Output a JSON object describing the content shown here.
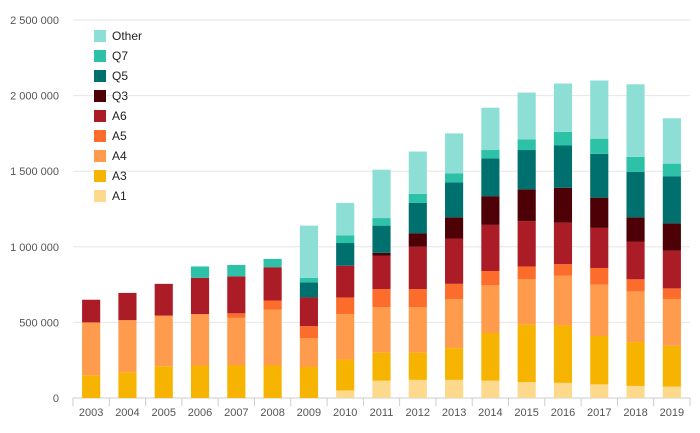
{
  "chart_data": {
    "type": "bar",
    "stacked": true,
    "categories": [
      "2003",
      "2004",
      "2005",
      "2006",
      "2007",
      "2008",
      "2009",
      "2010",
      "2011",
      "2012",
      "2013",
      "2014",
      "2015",
      "2016",
      "2017",
      "2018",
      "2019"
    ],
    "ylim": [
      0,
      2500000
    ],
    "yticks": [
      0,
      500000,
      1000000,
      1500000,
      2000000,
      2500000
    ],
    "ytick_labels": [
      "0",
      "500 000",
      "1 000 000",
      "1 500 000",
      "2 000 000",
      "2 500 000"
    ],
    "grid": true,
    "legend_position": "top-left",
    "series": [
      {
        "name": "A1",
        "color": "#fcd98c",
        "values": [
          0,
          0,
          0,
          0,
          0,
          0,
          0,
          50000,
          115000,
          120000,
          120000,
          115000,
          105000,
          100000,
          90000,
          80000,
          75000
        ]
      },
      {
        "name": "A3",
        "color": "#f6b400",
        "values": [
          150000,
          170000,
          210000,
          215000,
          215000,
          215000,
          205000,
          205000,
          185000,
          180000,
          210000,
          315000,
          380000,
          380000,
          320000,
          290000,
          270000
        ]
      },
      {
        "name": "A4",
        "color": "#fe9b4d",
        "values": [
          350000,
          345000,
          335000,
          340000,
          315000,
          370000,
          190000,
          300000,
          300000,
          300000,
          325000,
          315000,
          300000,
          330000,
          340000,
          335000,
          310000
        ]
      },
      {
        "name": "A5",
        "color": "#fc6c2a",
        "values": [
          0,
          0,
          0,
          0,
          30000,
          60000,
          80000,
          110000,
          120000,
          120000,
          100000,
          95000,
          85000,
          75000,
          110000,
          80000,
          70000
        ]
      },
      {
        "name": "A6",
        "color": "#ab1c26",
        "values": [
          150000,
          180000,
          210000,
          240000,
          245000,
          220000,
          190000,
          210000,
          220000,
          280000,
          300000,
          305000,
          300000,
          275000,
          265000,
          250000,
          250000
        ]
      },
      {
        "name": "Q3",
        "color": "#4d0106",
        "values": [
          0,
          0,
          0,
          0,
          0,
          0,
          0,
          0,
          20000,
          90000,
          140000,
          190000,
          210000,
          230000,
          200000,
          160000,
          180000
        ]
      },
      {
        "name": "Q5",
        "color": "#00706e",
        "values": [
          0,
          0,
          0,
          0,
          0,
          0,
          100000,
          150000,
          180000,
          200000,
          230000,
          250000,
          260000,
          280000,
          290000,
          300000,
          310000
        ]
      },
      {
        "name": "Q7",
        "color": "#2dc1a7",
        "values": [
          0,
          0,
          0,
          75000,
          75000,
          55000,
          30000,
          50000,
          50000,
          60000,
          60000,
          55000,
          70000,
          90000,
          100000,
          100000,
          85000
        ]
      },
      {
        "name": "Other",
        "color": "#8ddfd5",
        "values": [
          0,
          0,
          0,
          0,
          0,
          0,
          345000,
          215000,
          320000,
          280000,
          265000,
          280000,
          310000,
          320000,
          385000,
          480000,
          300000
        ]
      }
    ]
  }
}
